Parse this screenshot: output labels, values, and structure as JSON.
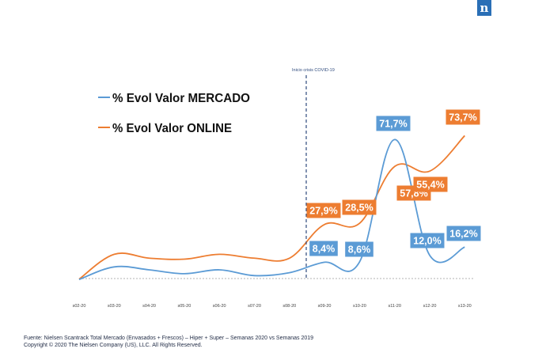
{
  "logo_text": "n",
  "chart_data": {
    "type": "line",
    "categories": [
      "s02-20",
      "s03-20",
      "s04-20",
      "s05-20",
      "s06-20",
      "s07-20",
      "s08-20",
      "s09-20",
      "s10-20",
      "s11-20",
      "s12-20",
      "s13-20"
    ],
    "series": [
      {
        "name": "% Evol Valor MERCADO",
        "color": "#5b9bd5",
        "values": [
          -0.5,
          6.0,
          4.5,
          2.5,
          4.5,
          1.5,
          3.0,
          8.4,
          8.6,
          71.7,
          12.0,
          16.2
        ]
      },
      {
        "name": "% Evol Valor ONLINE",
        "color": "#ed7d31",
        "values": [
          -0.3,
          12.5,
          10.5,
          10.0,
          12.5,
          10.5,
          10.5,
          27.9,
          28.5,
          57.8,
          55.4,
          73.7
        ]
      }
    ],
    "data_labels": {
      "% Evol Valor MERCADO": [
        "",
        "",
        "",
        "",
        "",
        "",
        "",
        "8,4%",
        "8,6%",
        "71,7%",
        "12,0%",
        "16,2%"
      ],
      "% Evol Valor ONLINE": [
        "",
        "",
        "",
        "",
        "",
        "",
        "",
        "27,9%",
        "28,5%",
        "57,8%",
        "55,4%",
        "73,7%"
      ]
    },
    "annotation": "Inicio crisis COVID-19",
    "legend_position": "top-left",
    "grid": false
  },
  "footer": {
    "source": "Fuente: Nielsen Scantrack Total Mercado (Envasados + Frescos) – Hiper + Super – Semanas 2020 vs Semanas 2019",
    "copyright": "Copyright © 2020 The Nielsen Company (US), LLC. All Rights Reserved."
  }
}
